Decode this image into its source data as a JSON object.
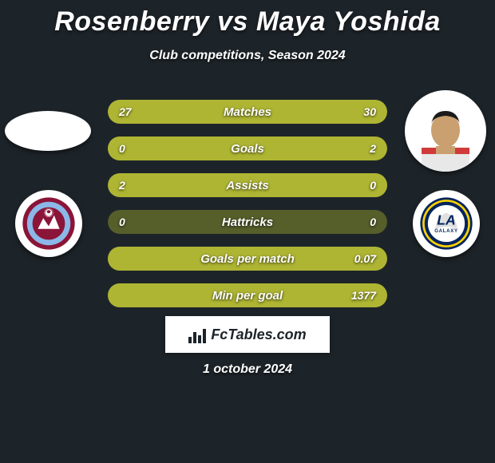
{
  "title": "Rosenberry vs Maya Yoshida",
  "subtitle": "Club competitions, Season 2024",
  "date": "1 october 2024",
  "branding": "FcTables.com",
  "colors": {
    "background": "#1d2429",
    "bar_track": "#565e2a",
    "bar_fill": "#aeb533",
    "text": "#ffffff"
  },
  "left": {
    "player_name": "Rosenberry",
    "player_has_photo": false,
    "club_name": "Colorado Rapids",
    "club_badge_primary": "#8a1538",
    "club_badge_secondary": "#8bb8e8"
  },
  "right": {
    "player_name": "Maya Yoshida",
    "player_has_photo": true,
    "club_name": "LA Galaxy",
    "club_badge_primary": "#00245d",
    "club_badge_secondary": "#ffd200"
  },
  "stats": [
    {
      "label": "Matches",
      "left_val": "27",
      "right_val": "30",
      "left_pct": 47,
      "right_pct": 53
    },
    {
      "label": "Goals",
      "left_val": "0",
      "right_val": "2",
      "left_pct": 0,
      "right_pct": 100
    },
    {
      "label": "Assists",
      "left_val": "2",
      "right_val": "0",
      "left_pct": 100,
      "right_pct": 0
    },
    {
      "label": "Hattricks",
      "left_val": "0",
      "right_val": "0",
      "left_pct": 0,
      "right_pct": 0
    },
    {
      "label": "Goals per match",
      "left_val": "",
      "right_val": "0.07",
      "left_pct": 0,
      "right_pct": 100
    },
    {
      "label": "Min per goal",
      "left_val": "",
      "right_val": "1377",
      "left_pct": 0,
      "right_pct": 100
    }
  ]
}
